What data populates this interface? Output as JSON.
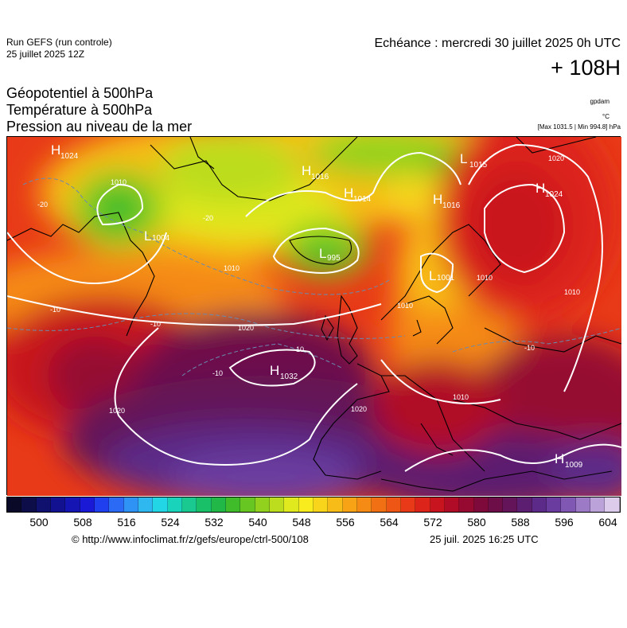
{
  "header": {
    "run_name": "Run GEFS (run controle)",
    "run_date": "25 juillet 2025 12Z",
    "valid_time": "Echéance : mercredi 30 juillet 2025 0h UTC",
    "lead_time": "+ 108H"
  },
  "titles": {
    "line1": "Géopotentiel à 500hPa",
    "line2": "Température à 500hPa",
    "line3": "Pression au niveau de la mer"
  },
  "units": {
    "geopotential": "gpdam",
    "temperature": "°C",
    "maxmin": "[Max 1031.5 | Min 994.8] hPa"
  },
  "map": {
    "pressure_centers": [
      {
        "type": "H",
        "value": "1024"
      },
      {
        "type": "H",
        "value": "1016"
      },
      {
        "type": "H",
        "value": "1014"
      },
      {
        "type": "L",
        "value": "1015"
      },
      {
        "type": "H",
        "value": "1016"
      },
      {
        "type": "H",
        "value": "1024"
      },
      {
        "type": "L",
        "value": "995"
      },
      {
        "type": "L",
        "value": "1004"
      },
      {
        "type": "L",
        "value": "1001"
      },
      {
        "type": "H",
        "value": "1032"
      },
      {
        "type": "H",
        "value": "1009"
      }
    ],
    "isobar_labels": [
      "1010",
      "1020",
      "1020",
      "1020",
      "1010",
      "1010",
      "1010",
      "1010",
      "1020",
      "1010"
    ],
    "isotherm_labels": [
      "-20",
      "-20",
      "-10",
      "-10",
      "-10",
      "-10",
      "-10"
    ]
  },
  "colorbar": {
    "colors": [
      "#0a0a28",
      "#0d0d4a",
      "#10106e",
      "#121290",
      "#1515b4",
      "#1a1ad6",
      "#2040f0",
      "#2a6af5",
      "#2f93f5",
      "#2fb8f0",
      "#22d6e6",
      "#1ad3bb",
      "#19c98f",
      "#1ac068",
      "#22b847",
      "#40bc2a",
      "#68c622",
      "#92d21e",
      "#bcdd1e",
      "#e0e81e",
      "#f8ec1e",
      "#f8d51a",
      "#f8bc18",
      "#f8a216",
      "#f58a14",
      "#f27014",
      "#ee5616",
      "#e83a18",
      "#dc241a",
      "#c8141e",
      "#b00c28",
      "#960a32",
      "#7e0a3c",
      "#6e0e48",
      "#641458",
      "#5c1e70",
      "#5c2a88",
      "#6a3ca0",
      "#8058b4",
      "#9c7ac6",
      "#bba2d8",
      "#dccbea"
    ],
    "tick_labels": [
      "500",
      "508",
      "516",
      "524",
      "532",
      "540",
      "548",
      "556",
      "564",
      "572",
      "580",
      "588",
      "596",
      "604"
    ]
  },
  "footer": {
    "credit_url": "© http://www.infoclimat.fr/z/gefs/europe/ctrl-500/108",
    "generated": "25 juil. 2025 16:25 UTC"
  }
}
